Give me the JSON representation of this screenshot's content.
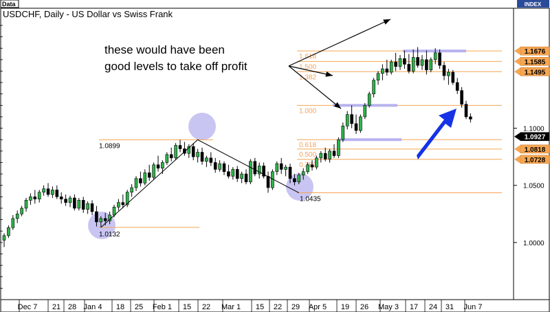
{
  "header": {
    "tab_label": "Data",
    "index_label": "INDEX"
  },
  "chart_data": {
    "type": "candlestick",
    "title": "USDCHF, Daily - US Dollar vs Swiss Frank",
    "ylim": [
      0.95,
      1.205
    ],
    "y_ticks": [
      {
        "value": 1.0,
        "label": "1.0000"
      },
      {
        "value": 1.05,
        "label": "1.0500"
      },
      {
        "value": 1.1,
        "label": "1.1000"
      }
    ],
    "x_ticks": [
      "Dec 7",
      "21",
      "28",
      "Jan 4",
      "18",
      "25",
      "Feb 1",
      "15",
      "22",
      "Mar 1",
      "15",
      "22",
      "29",
      "Apr 5",
      "19",
      "26",
      "May 3",
      "17",
      "24",
      "31",
      "Jun 7"
    ],
    "price_tags": [
      {
        "value": 1.1676,
        "label": "1.1676",
        "style": "orange"
      },
      {
        "value": 1.1585,
        "label": "1.1585",
        "style": "orange"
      },
      {
        "value": 1.1495,
        "label": "1.1495",
        "style": "orange"
      },
      {
        "value": 1.0927,
        "label": "1.0927",
        "style": "current"
      },
      {
        "value": 1.0818,
        "label": "1.0818",
        "style": "orange"
      },
      {
        "value": 1.0728,
        "label": "1.0728",
        "style": "orange"
      }
    ],
    "fib_levels": [
      {
        "label": "1.618",
        "value": 1.1676
      },
      {
        "label": "1.500",
        "value": 1.1585
      },
      {
        "label": "1.382",
        "value": 1.1495
      },
      {
        "label": "1.000",
        "value": 1.12
      },
      {
        "label": "0.618",
        "value": 1.09
      },
      {
        "label": "0.500",
        "value": 1.0818
      },
      {
        "label": "0.382",
        "value": 1.0728
      }
    ],
    "swing_points": [
      {
        "label": "1.0132",
        "value": 1.0132
      },
      {
        "label": "1.0899",
        "value": 1.0899
      },
      {
        "label": "1.0435",
        "value": 1.0435
      }
    ],
    "annotation": {
      "line1": "these would have been",
      "line2": "good levels to take off profit"
    },
    "candles": [
      {
        "o": 1.002,
        "h": 1.008,
        "l": 0.996,
        "c": 1.006
      },
      {
        "o": 1.006,
        "h": 1.015,
        "l": 1.004,
        "c": 1.013
      },
      {
        "o": 1.013,
        "h": 1.024,
        "l": 1.011,
        "c": 1.021
      },
      {
        "o": 1.021,
        "h": 1.028,
        "l": 1.017,
        "c": 1.025
      },
      {
        "o": 1.025,
        "h": 1.032,
        "l": 1.023,
        "c": 1.03
      },
      {
        "o": 1.03,
        "h": 1.039,
        "l": 1.027,
        "c": 1.037
      },
      {
        "o": 1.037,
        "h": 1.043,
        "l": 1.033,
        "c": 1.04
      },
      {
        "o": 1.04,
        "h": 1.046,
        "l": 1.034,
        "c": 1.038
      },
      {
        "o": 1.038,
        "h": 1.046,
        "l": 1.035,
        "c": 1.044
      },
      {
        "o": 1.044,
        "h": 1.05,
        "l": 1.041,
        "c": 1.047
      },
      {
        "o": 1.047,
        "h": 1.052,
        "l": 1.04,
        "c": 1.042
      },
      {
        "o": 1.042,
        "h": 1.049,
        "l": 1.039,
        "c": 1.046
      },
      {
        "o": 1.046,
        "h": 1.05,
        "l": 1.038,
        "c": 1.04
      },
      {
        "o": 1.04,
        "h": 1.044,
        "l": 1.034,
        "c": 1.038
      },
      {
        "o": 1.038,
        "h": 1.042,
        "l": 1.032,
        "c": 1.035
      },
      {
        "o": 1.035,
        "h": 1.041,
        "l": 1.031,
        "c": 1.039
      },
      {
        "o": 1.039,
        "h": 1.042,
        "l": 1.028,
        "c": 1.03
      },
      {
        "o": 1.03,
        "h": 1.039,
        "l": 1.028,
        "c": 1.037
      },
      {
        "o": 1.037,
        "h": 1.04,
        "l": 1.026,
        "c": 1.029
      },
      {
        "o": 1.029,
        "h": 1.036,
        "l": 1.025,
        "c": 1.034
      },
      {
        "o": 1.034,
        "h": 1.037,
        "l": 1.024,
        "c": 1.027
      },
      {
        "o": 1.027,
        "h": 1.032,
        "l": 1.014,
        "c": 1.018
      },
      {
        "o": 1.018,
        "h": 1.023,
        "l": 1.0132,
        "c": 1.021
      },
      {
        "o": 1.021,
        "h": 1.026,
        "l": 1.015,
        "c": 1.019
      },
      {
        "o": 1.019,
        "h": 1.027,
        "l": 1.016,
        "c": 1.024
      },
      {
        "o": 1.024,
        "h": 1.033,
        "l": 1.022,
        "c": 1.031
      },
      {
        "o": 1.031,
        "h": 1.038,
        "l": 1.028,
        "c": 1.035
      },
      {
        "o": 1.035,
        "h": 1.042,
        "l": 1.03,
        "c": 1.033
      },
      {
        "o": 1.033,
        "h": 1.046,
        "l": 1.031,
        "c": 1.044
      },
      {
        "o": 1.044,
        "h": 1.051,
        "l": 1.04,
        "c": 1.048
      },
      {
        "o": 1.048,
        "h": 1.058,
        "l": 1.045,
        "c": 1.056
      },
      {
        "o": 1.056,
        "h": 1.062,
        "l": 1.049,
        "c": 1.052
      },
      {
        "o": 1.052,
        "h": 1.064,
        "l": 1.05,
        "c": 1.061
      },
      {
        "o": 1.061,
        "h": 1.068,
        "l": 1.054,
        "c": 1.057
      },
      {
        "o": 1.057,
        "h": 1.07,
        "l": 1.055,
        "c": 1.068
      },
      {
        "o": 1.068,
        "h": 1.076,
        "l": 1.062,
        "c": 1.065
      },
      {
        "o": 1.065,
        "h": 1.072,
        "l": 1.06,
        "c": 1.07
      },
      {
        "o": 1.07,
        "h": 1.079,
        "l": 1.068,
        "c": 1.077
      },
      {
        "o": 1.077,
        "h": 1.083,
        "l": 1.071,
        "c": 1.074
      },
      {
        "o": 1.074,
        "h": 1.087,
        "l": 1.072,
        "c": 1.085
      },
      {
        "o": 1.085,
        "h": 1.0899,
        "l": 1.079,
        "c": 1.082
      },
      {
        "o": 1.082,
        "h": 1.088,
        "l": 1.076,
        "c": 1.078
      },
      {
        "o": 1.078,
        "h": 1.086,
        "l": 1.074,
        "c": 1.084
      },
      {
        "o": 1.084,
        "h": 1.087,
        "l": 1.072,
        "c": 1.075
      },
      {
        "o": 1.075,
        "h": 1.082,
        "l": 1.07,
        "c": 1.079
      },
      {
        "o": 1.079,
        "h": 1.083,
        "l": 1.068,
        "c": 1.071
      },
      {
        "o": 1.071,
        "h": 1.076,
        "l": 1.066,
        "c": 1.074
      },
      {
        "o": 1.074,
        "h": 1.079,
        "l": 1.067,
        "c": 1.07
      },
      {
        "o": 1.07,
        "h": 1.074,
        "l": 1.061,
        "c": 1.064
      },
      {
        "o": 1.064,
        "h": 1.072,
        "l": 1.062,
        "c": 1.069
      },
      {
        "o": 1.069,
        "h": 1.071,
        "l": 1.059,
        "c": 1.062
      },
      {
        "o": 1.062,
        "h": 1.068,
        "l": 1.056,
        "c": 1.058
      },
      {
        "o": 1.058,
        "h": 1.066,
        "l": 1.055,
        "c": 1.064
      },
      {
        "o": 1.064,
        "h": 1.067,
        "l": 1.053,
        "c": 1.056
      },
      {
        "o": 1.056,
        "h": 1.062,
        "l": 1.052,
        "c": 1.06
      },
      {
        "o": 1.06,
        "h": 1.064,
        "l": 1.051,
        "c": 1.053
      },
      {
        "o": 1.053,
        "h": 1.073,
        "l": 1.051,
        "c": 1.071
      },
      {
        "o": 1.071,
        "h": 1.074,
        "l": 1.058,
        "c": 1.06
      },
      {
        "o": 1.06,
        "h": 1.07,
        "l": 1.056,
        "c": 1.067
      },
      {
        "o": 1.067,
        "h": 1.07,
        "l": 1.056,
        "c": 1.058
      },
      {
        "o": 1.058,
        "h": 1.062,
        "l": 1.0435,
        "c": 1.048
      },
      {
        "o": 1.048,
        "h": 1.064,
        "l": 1.046,
        "c": 1.062
      },
      {
        "o": 1.062,
        "h": 1.071,
        "l": 1.059,
        "c": 1.069
      },
      {
        "o": 1.069,
        "h": 1.074,
        "l": 1.06,
        "c": 1.064
      },
      {
        "o": 1.064,
        "h": 1.068,
        "l": 1.058,
        "c": 1.066
      },
      {
        "o": 1.066,
        "h": 1.069,
        "l": 1.052,
        "c": 1.056
      },
      {
        "o": 1.056,
        "h": 1.06,
        "l": 1.05,
        "c": 1.053
      },
      {
        "o": 1.053,
        "h": 1.061,
        "l": 1.051,
        "c": 1.059
      },
      {
        "o": 1.059,
        "h": 1.065,
        "l": 1.055,
        "c": 1.062
      },
      {
        "o": 1.062,
        "h": 1.07,
        "l": 1.06,
        "c": 1.068
      },
      {
        "o": 1.068,
        "h": 1.072,
        "l": 1.063,
        "c": 1.066
      },
      {
        "o": 1.066,
        "h": 1.076,
        "l": 1.064,
        "c": 1.074
      },
      {
        "o": 1.074,
        "h": 1.08,
        "l": 1.07,
        "c": 1.078
      },
      {
        "o": 1.078,
        "h": 1.083,
        "l": 1.071,
        "c": 1.073
      },
      {
        "o": 1.073,
        "h": 1.082,
        "l": 1.07,
        "c": 1.08
      },
      {
        "o": 1.08,
        "h": 1.086,
        "l": 1.074,
        "c": 1.076
      },
      {
        "o": 1.076,
        "h": 1.092,
        "l": 1.074,
        "c": 1.09
      },
      {
        "o": 1.09,
        "h": 1.105,
        "l": 1.088,
        "c": 1.102
      },
      {
        "o": 1.102,
        "h": 1.115,
        "l": 1.099,
        "c": 1.112
      },
      {
        "o": 1.112,
        "h": 1.12,
        "l": 1.1,
        "c": 1.104
      },
      {
        "o": 1.104,
        "h": 1.112,
        "l": 1.095,
        "c": 1.098
      },
      {
        "o": 1.098,
        "h": 1.112,
        "l": 1.096,
        "c": 1.11
      },
      {
        "o": 1.11,
        "h": 1.122,
        "l": 1.108,
        "c": 1.12
      },
      {
        "o": 1.12,
        "h": 1.132,
        "l": 1.118,
        "c": 1.13
      },
      {
        "o": 1.13,
        "h": 1.144,
        "l": 1.127,
        "c": 1.142
      },
      {
        "o": 1.142,
        "h": 1.15,
        "l": 1.138,
        "c": 1.148
      },
      {
        "o": 1.148,
        "h": 1.156,
        "l": 1.142,
        "c": 1.152
      },
      {
        "o": 1.152,
        "h": 1.16,
        "l": 1.146,
        "c": 1.149
      },
      {
        "o": 1.149,
        "h": 1.16,
        "l": 1.147,
        "c": 1.158
      },
      {
        "o": 1.158,
        "h": 1.166,
        "l": 1.15,
        "c": 1.154
      },
      {
        "o": 1.154,
        "h": 1.164,
        "l": 1.151,
        "c": 1.161
      },
      {
        "o": 1.161,
        "h": 1.168,
        "l": 1.152,
        "c": 1.156
      },
      {
        "o": 1.156,
        "h": 1.165,
        "l": 1.148,
        "c": 1.15
      },
      {
        "o": 1.15,
        "h": 1.169,
        "l": 1.148,
        "c": 1.162
      },
      {
        "o": 1.162,
        "h": 1.171,
        "l": 1.153,
        "c": 1.155
      },
      {
        "o": 1.155,
        "h": 1.164,
        "l": 1.151,
        "c": 1.16
      },
      {
        "o": 1.16,
        "h": 1.168,
        "l": 1.147,
        "c": 1.151
      },
      {
        "o": 1.151,
        "h": 1.162,
        "l": 1.149,
        "c": 1.16
      },
      {
        "o": 1.16,
        "h": 1.17,
        "l": 1.156,
        "c": 1.166
      },
      {
        "o": 1.166,
        "h": 1.169,
        "l": 1.152,
        "c": 1.155
      },
      {
        "o": 1.155,
        "h": 1.158,
        "l": 1.142,
        "c": 1.146
      },
      {
        "o": 1.146,
        "h": 1.152,
        "l": 1.138,
        "c": 1.149
      },
      {
        "o": 1.149,
        "h": 1.151,
        "l": 1.138,
        "c": 1.14
      },
      {
        "o": 1.14,
        "h": 1.144,
        "l": 1.13,
        "c": 1.133
      },
      {
        "o": 1.133,
        "h": 1.136,
        "l": 1.118,
        "c": 1.121
      },
      {
        "o": 1.121,
        "h": 1.124,
        "l": 1.108,
        "c": 1.11
      },
      {
        "o": 1.11,
        "h": 1.113,
        "l": 1.105,
        "c": 1.108
      }
    ]
  }
}
